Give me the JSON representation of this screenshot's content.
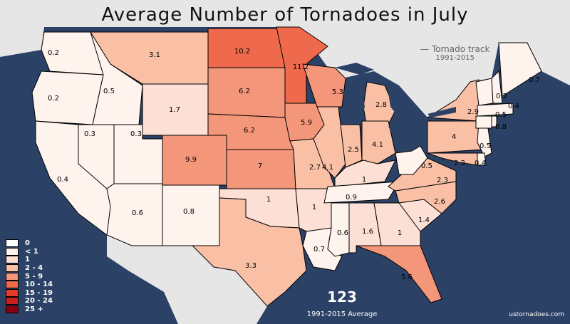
{
  "title": "Average Number of Tornadoes in July",
  "track_legend": {
    "label": "Tornado track",
    "years": "1991-2015"
  },
  "total": "123",
  "total_caption": "1991-2015 Average",
  "site": "ustornadoes.com",
  "legend": [
    {
      "label": "0",
      "color": "#ffffff"
    },
    {
      "label": "< 1",
      "color": "#fff3ee"
    },
    {
      "label": "1",
      "color": "#fde0d5"
    },
    {
      "label": "2 - 4",
      "color": "#f9c0a6"
    },
    {
      "label": "5 - 9",
      "color": "#f4967a"
    },
    {
      "label": "10 - 14",
      "color": "#ef6a4c"
    },
    {
      "label": "15 - 19",
      "color": "#e8392b"
    },
    {
      "label": "20 - 24",
      "color": "#c81e1e"
    },
    {
      "label": "25 +",
      "color": "#8b0010"
    }
  ],
  "colors": {
    "land": "#e6e6e6",
    "ocean": "#2b4266"
  },
  "state_values": [
    "0.2",
    "0.2",
    "0.4",
    "0.5",
    "0.3",
    "0.3",
    "0.6",
    "3.1",
    "1.7",
    "9.9",
    "0.8",
    "10.2",
    "6.2",
    "6.2",
    "7",
    "1",
    "3.3",
    "11.2",
    "5.9",
    "2.7",
    "1",
    "0.7",
    "5.3",
    "4.1",
    "2.8",
    "2.5",
    "4.1",
    "1",
    "0.9",
    "0.6",
    "1.6",
    "1",
    "5.6",
    "1.4",
    "2.6",
    "2.3",
    "0.5",
    "4",
    "2.9",
    "0.5",
    "2.2",
    "0.4",
    "0.2",
    "0.4",
    "0.5",
    "0.8",
    "0.7",
    "0.5"
  ]
}
